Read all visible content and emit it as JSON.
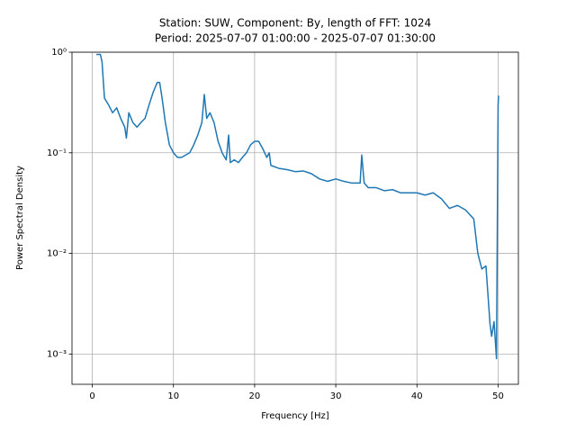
{
  "chart_data": {
    "type": "line",
    "title": "Station: SUW, Component: By, length of FFT: 1024",
    "subtitle": "Period: 2025-07-07 01:00:00 - 2025-07-07 01:30:00",
    "x_label": "Frequency [Hz]",
    "y_label": "Power Spectral Density",
    "color": "#1f77b4",
    "log_y": true,
    "grid": true,
    "xlim": [
      -2.5,
      52.5
    ],
    "xticks": [
      0,
      10,
      20,
      30,
      40,
      50
    ],
    "ylim": [
      0.0005,
      1
    ],
    "yticks": [
      {
        "value": 0.001,
        "label": "10⁻³"
      },
      {
        "value": 0.01,
        "label": "10⁻²"
      },
      {
        "value": 0.1,
        "label": "10⁻¹"
      },
      {
        "value": 1,
        "label": "10⁰"
      }
    ],
    "x": [
      0.5,
      1.0,
      1.2,
      1.5,
      2,
      2.5,
      3,
      3.5,
      4,
      4.2,
      4.5,
      5,
      5.5,
      6,
      6.5,
      7,
      7.5,
      8,
      8.3,
      8.6,
      9,
      9.5,
      10,
      10.5,
      11,
      11.5,
      12,
      12.5,
      13,
      13.5,
      13.8,
      14.1,
      14.5,
      15,
      15.5,
      16,
      16.5,
      16.8,
      17,
      17.5,
      18,
      18.5,
      19,
      19.5,
      20,
      20.5,
      21,
      21.5,
      21.8,
      22,
      23,
      24,
      25,
      26,
      27,
      28,
      29,
      30,
      31,
      32,
      33,
      33.2,
      33.5,
      34,
      35,
      36,
      37,
      38,
      39,
      40,
      41,
      42,
      43,
      44,
      45,
      46,
      47,
      47.5,
      48,
      48.5,
      49,
      49.2,
      49.5,
      49.8,
      50,
      50.05
    ],
    "values": [
      0.95,
      0.95,
      0.8,
      0.35,
      0.3,
      0.25,
      0.28,
      0.22,
      0.18,
      0.14,
      0.25,
      0.2,
      0.18,
      0.2,
      0.22,
      0.3,
      0.4,
      0.5,
      0.5,
      0.35,
      0.2,
      0.12,
      0.1,
      0.09,
      0.09,
      0.095,
      0.1,
      0.12,
      0.15,
      0.2,
      0.38,
      0.22,
      0.25,
      0.2,
      0.13,
      0.1,
      0.085,
      0.15,
      0.08,
      0.085,
      0.08,
      0.09,
      0.1,
      0.12,
      0.13,
      0.13,
      0.11,
      0.09,
      0.1,
      0.075,
      0.07,
      0.068,
      0.065,
      0.066,
      0.062,
      0.055,
      0.052,
      0.055,
      0.052,
      0.05,
      0.05,
      0.095,
      0.05,
      0.045,
      0.045,
      0.042,
      0.043,
      0.04,
      0.04,
      0.04,
      0.038,
      0.04,
      0.035,
      0.028,
      0.03,
      0.027,
      0.022,
      0.01,
      0.007,
      0.0075,
      0.002,
      0.0015,
      0.0021,
      0.0009,
      0.3,
      0.37
    ]
  }
}
